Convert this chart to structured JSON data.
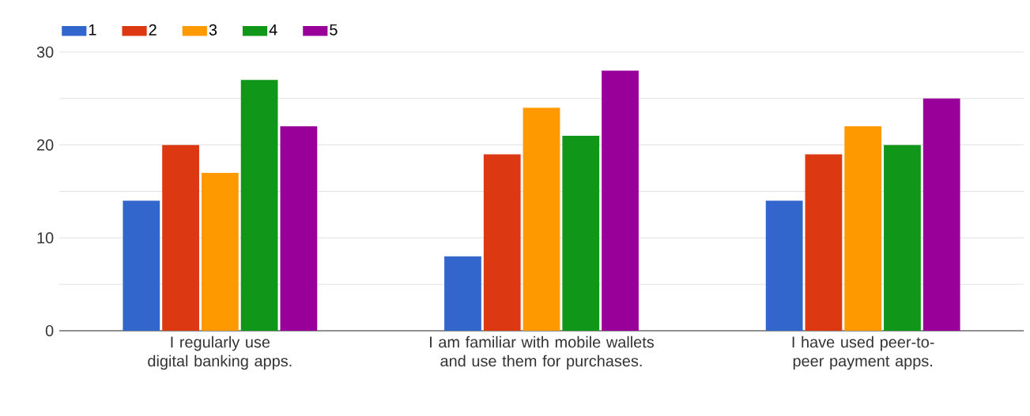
{
  "chart_data": {
    "type": "bar",
    "categories": [
      "I regularly use digital banking apps.",
      "I am familiar with mobile wallets and use them for purchases.",
      "I have used peer-to-peer payment apps."
    ],
    "series": [
      {
        "name": "1",
        "color": "#3366cc",
        "values": [
          14,
          8,
          14
        ]
      },
      {
        "name": "2",
        "color": "#dc3912",
        "values": [
          20,
          19,
          19
        ]
      },
      {
        "name": "3",
        "color": "#ff9900",
        "values": [
          17,
          24,
          22
        ]
      },
      {
        "name": "4",
        "color": "#109618",
        "values": [
          27,
          21,
          20
        ]
      },
      {
        "name": "5",
        "color": "#990099",
        "values": [
          22,
          28,
          25
        ]
      }
    ],
    "ylim": [
      0,
      30
    ],
    "yticks": [
      0,
      {
        "value": 5,
        "label": null
      },
      10,
      {
        "value": 15,
        "label": null
      },
      20,
      {
        "value": 25,
        "label": null
      },
      30
    ],
    "grid": true,
    "legend": "top"
  }
}
